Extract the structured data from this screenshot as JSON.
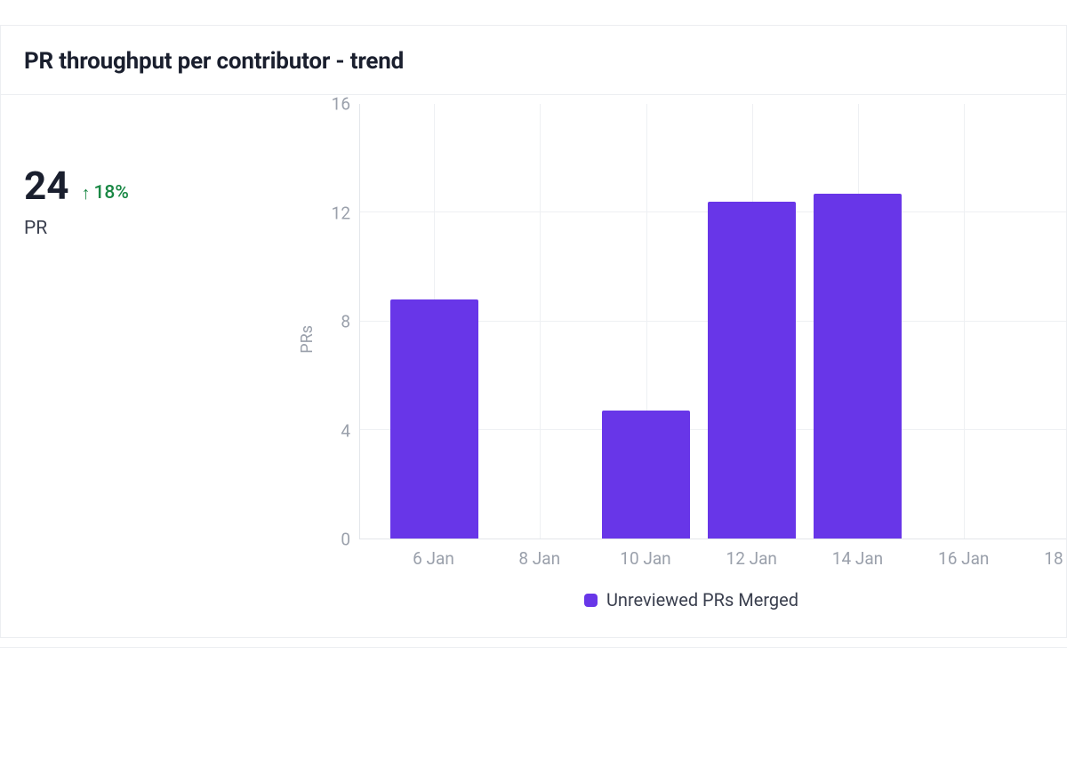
{
  "card": {
    "title": "PR throughput per contributor - trend"
  },
  "stat": {
    "value": "24",
    "delta_direction": "up",
    "delta_text": "18%",
    "delta_color": "#1a8845",
    "label": "PR"
  },
  "chart": {
    "type": "bar",
    "y_axis_label": "PRs",
    "y_ticks": [
      0,
      4,
      8,
      12,
      16
    ],
    "ylim": [
      0,
      16
    ],
    "x_ticks": [
      "6 Jan",
      "8 Jan",
      "10 Jan",
      "12 Jan",
      "14 Jan",
      "16 Jan",
      "18 Jan"
    ],
    "x_tick_positions_pct": [
      10.5,
      25.5,
      40.5,
      55.5,
      70.5,
      85.5,
      100.5
    ],
    "bars": [
      {
        "x_pct": 10.5,
        "value": 8.8
      },
      {
        "x_pct": 40.5,
        "value": 4.7
      },
      {
        "x_pct": 55.5,
        "value": 12.4
      },
      {
        "x_pct": 70.5,
        "value": 12.7
      }
    ],
    "bar_width_pct": 12.5,
    "bar_color": "#6836e8",
    "grid_color": "#eef0f3",
    "axis_color": "#e3e6ea",
    "tick_color": "#9aa0ab",
    "tick_fontsize_px": 19,
    "background_color": "#ffffff",
    "legend": {
      "label": "Unreviewed PRs Merged",
      "color": "#6836e8"
    }
  }
}
